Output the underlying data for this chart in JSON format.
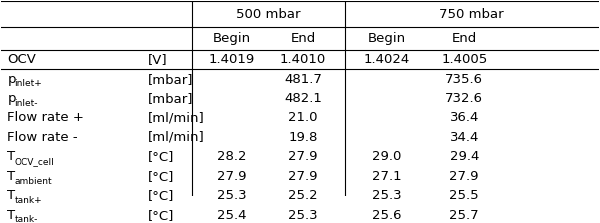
{
  "title": "",
  "col_headers_top": [
    "",
    "",
    "500 mbar",
    "",
    "750 mbar",
    ""
  ],
  "col_headers_mid": [
    "",
    "",
    "Begin",
    "End",
    "Begin",
    "End"
  ],
  "rows": [
    [
      "OCV",
      "[V]",
      "1.4019",
      "1.4010",
      "1.4024",
      "1.4005"
    ],
    [
      "p_inlet+",
      "[mbar]",
      "",
      "481.7",
      "",
      "735.6"
    ],
    [
      "p_inlet-",
      "[mbar]",
      "",
      "482.1",
      "",
      "732.6"
    ],
    [
      "Flow rate +",
      "[ml/min]",
      "",
      "21.0",
      "",
      "36.4"
    ],
    [
      "Flow rate -",
      "[ml/min]",
      "",
      "19.8",
      "",
      "34.4"
    ],
    [
      "T_OCV_cell",
      "[°C]",
      "28.2",
      "27.9",
      "29.0",
      "29.4"
    ],
    [
      "T_ambient",
      "[°C]",
      "27.9",
      "27.9",
      "27.1",
      "27.9"
    ],
    [
      "T_tank+",
      "[°C]",
      "25.3",
      "25.2",
      "25.3",
      "25.5"
    ],
    [
      "T_tank-",
      "[°C]",
      "25.4",
      "25.3",
      "25.6",
      "25.7"
    ]
  ],
  "subscript_map": {
    "p_inlet+": [
      "p",
      "inlet+"
    ],
    "p_inlet-": [
      "p",
      "inlet-"
    ],
    "T_OCV_cell": [
      "T",
      "OCV_cell"
    ],
    "T_ambient": [
      "T",
      "ambient"
    ],
    "T_tank+": [
      "T",
      "tank+"
    ],
    "T_tank-": [
      "T",
      "tank-"
    ]
  },
  "bg_color": "#ffffff",
  "text_color": "#000000",
  "font_size": 9.5,
  "header_font_size": 9.5
}
